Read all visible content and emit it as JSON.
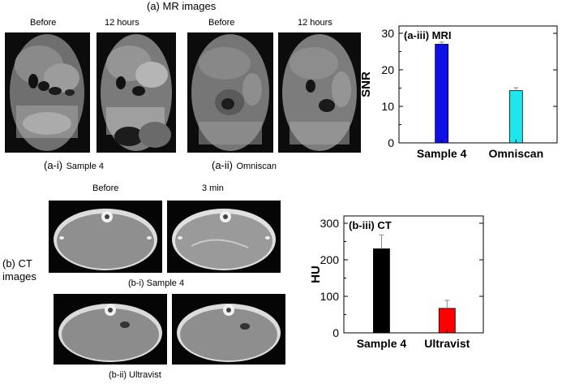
{
  "mr": {
    "title": "(a) MR images",
    "before_label_1": "Before",
    "after_label_1": "12 hours",
    "before_label_2": "Before",
    "after_label_2": "12 hours",
    "caption_i_prefix": "(a-i)",
    "caption_i_text": "Sample 4",
    "caption_ii_prefix": "(a-ii)",
    "caption_ii_text": "Omniscan"
  },
  "ct": {
    "title_line1": "(b) CT",
    "title_line2": "images",
    "before_label": "Before",
    "after_label": "3 min",
    "caption_i": "(b-i) Sample 4",
    "caption_ii": "(b-ii) Ultravist"
  },
  "chart_data": [
    {
      "type": "bar",
      "title": "(a-iii) MRI",
      "ylabel": "SNR",
      "xlabel": "",
      "categories": [
        "Sample 4",
        "Omniscan"
      ],
      "values": [
        27,
        14.3
      ],
      "errors": [
        0.6,
        0.8
      ],
      "colors": [
        "#0f0fe8",
        "#1ee6ee"
      ],
      "ylim": [
        0,
        32
      ],
      "yticks": [
        0,
        10,
        20,
        30
      ],
      "grid": false,
      "legend": "none"
    },
    {
      "type": "bar",
      "title": "(b-iii) CT",
      "ylabel": "HU",
      "xlabel": "",
      "categories": [
        "Sample 4",
        "Ultravist"
      ],
      "values": [
        230,
        67
      ],
      "errors": [
        38,
        22
      ],
      "colors": [
        "#000000",
        "#ff0000"
      ],
      "ylim": [
        0,
        320
      ],
      "yticks": [
        0,
        100,
        200,
        300
      ],
      "grid": false,
      "legend": "none"
    }
  ]
}
